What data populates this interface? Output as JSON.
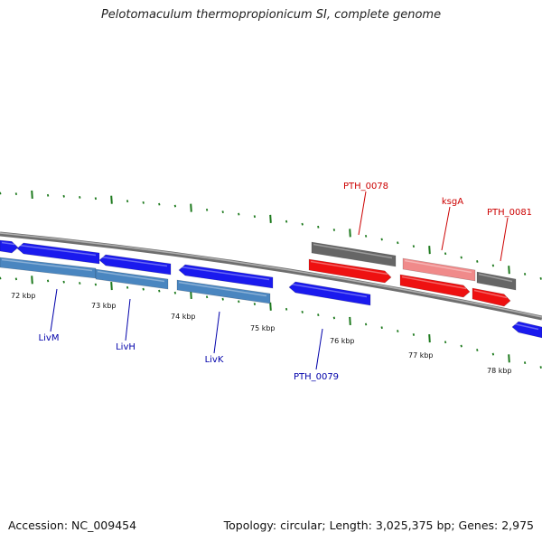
{
  "header": {
    "title": "Pelotomaculum thermopropionicum SI, complete genome"
  },
  "footer": {
    "accession": "Accession: NC_009454",
    "topology": "Topology: circular; Length: 3,025,375 bp; Genes: 2,975"
  },
  "colors": {
    "backbone": "#8a8a8a",
    "tick": "#1e7a1e",
    "gene_blue": "#1a1aee",
    "gene_steel": "#4a86c0",
    "gene_red": "#ee1111",
    "gene_gray": "#666666",
    "gene_pink": "#f08a8a",
    "label_red": "#cc0000",
    "label_blue": "#0000aa"
  },
  "scale": {
    "unit": "kbp",
    "ticks": [
      {
        "label": "72 kbp"
      },
      {
        "label": "73 kbp"
      },
      {
        "label": "74 kbp"
      },
      {
        "label": "75 kbp"
      },
      {
        "label": "76 kbp"
      },
      {
        "label": "77 kbp"
      },
      {
        "label": "78 kbp"
      }
    ]
  },
  "gene_labels": [
    {
      "name": "PTH_0078",
      "color": "label_red"
    },
    {
      "name": "ksgA",
      "color": "label_red"
    },
    {
      "name": "PTH_0081",
      "color": "label_red"
    },
    {
      "name": "LivM",
      "color": "label_blue"
    },
    {
      "name": "LivH",
      "color": "label_blue"
    },
    {
      "name": "LivK",
      "color": "label_blue"
    },
    {
      "name": "PTH_0079",
      "color": "label_blue"
    }
  ]
}
